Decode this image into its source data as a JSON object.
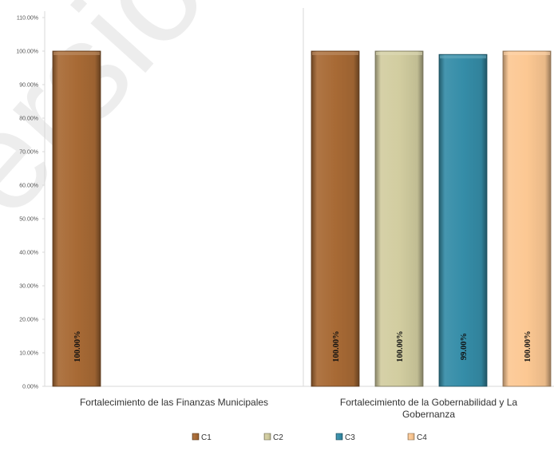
{
  "chart_data": {
    "type": "bar",
    "categories": [
      "Fortalecimiento de las Finanzas Municipales",
      "Fortalecimiento de la Gobernabilidad y La Gobernanza"
    ],
    "series": [
      {
        "name": "C1",
        "color": "#A86A35",
        "values": [
          100.0,
          100.0
        ],
        "labels": [
          "100.00%",
          "100.00%"
        ]
      },
      {
        "name": "C2",
        "color": "#D2CDA0",
        "values": [
          null,
          100.0
        ],
        "labels": [
          "",
          "100.00%"
        ]
      },
      {
        "name": "C3",
        "color": "#358DA8",
        "values": [
          null,
          99.0
        ],
        "labels": [
          "",
          "99.00%"
        ]
      },
      {
        "name": "C4",
        "color": "#FCC893",
        "values": [
          null,
          100.0
        ],
        "labels": [
          "",
          "100.00%"
        ]
      }
    ],
    "y_ticks": [
      "0.00%",
      "10.00%",
      "20.00%",
      "30.00%",
      "40.00%",
      "50.00%",
      "60.00%",
      "70.00%",
      "80.00%",
      "90.00%",
      "100.00%",
      "110.00%"
    ],
    "ylim": [
      0,
      110
    ],
    "title": "",
    "xlabel": "",
    "ylabel": "",
    "grid": false,
    "legend_position": "bottom",
    "category_separator": true
  },
  "watermark": {
    "text": "Versión",
    "color": "#000000"
  }
}
